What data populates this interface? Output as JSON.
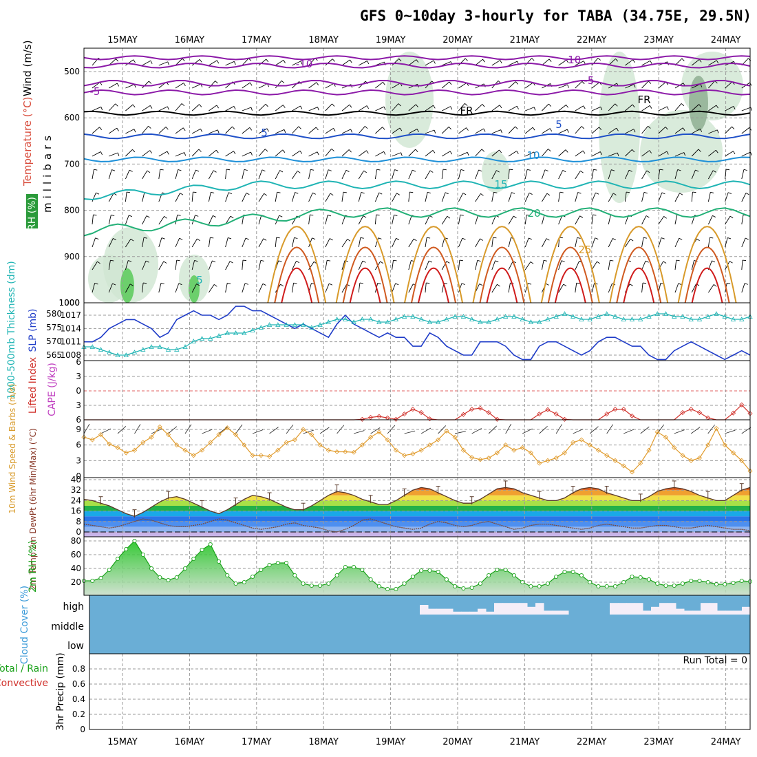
{
  "chart_data": {
    "type": "meteogram",
    "title": "GFS 0~10day 3-hourly for TABA (34.75E, 29.5N)",
    "dates": [
      "15MAY",
      "16MAY",
      "17MAY",
      "18MAY",
      "19MAY",
      "20MAY",
      "21MAY",
      "22MAY",
      "23MAY",
      "24MAY"
    ],
    "upper_air": {
      "ylabel": "millibars",
      "legend": [
        "Wind (m/s)",
        "Temperature (°C)",
        "RH (%)"
      ],
      "levels": [
        "500",
        "600",
        "700",
        "800",
        "900",
        "1000"
      ],
      "isotherm_labels": [
        "-10",
        "-5",
        "FR",
        "5",
        "10",
        "15",
        "20",
        "25"
      ],
      "isotherm_colors": {
        "-10": "#8c1aa8",
        "-5": "#8c1aa8",
        "FR": "#000000",
        "5": "#1f50c8",
        "10": "#1e90d8",
        "15": "#1fb4b4",
        "20": "#22b077",
        "25": "#d89a2a",
        "30": "#d05a20",
        "35": "#d01c1c"
      }
    },
    "slp_thickness": {
      "left_axis_label": "1000-500mb Thickness (dm)",
      "right_axis_label": "SLP (mb)",
      "thickness_ticks": [
        "580",
        "575",
        "570",
        "565"
      ],
      "slp_ticks": [
        "1017",
        "1014",
        "1011",
        "1008"
      ],
      "slp": [
        1011,
        1011,
        1012,
        1014,
        1015,
        1016,
        1016,
        1015,
        1014,
        1012,
        1013,
        1016,
        1017,
        1018,
        1017,
        1017,
        1016,
        1017,
        1019,
        1019,
        1018,
        1018,
        1017,
        1016,
        1015,
        1014,
        1015,
        1014,
        1013,
        1012,
        1015,
        1017,
        1015,
        1014,
        1013,
        1012,
        1013,
        1012,
        1012,
        1010,
        1010,
        1013,
        1012,
        1010,
        1009,
        1008,
        1008,
        1011,
        1011,
        1011,
        1010,
        1008,
        1007,
        1007,
        1010,
        1011,
        1011,
        1010,
        1009,
        1008,
        1009,
        1011,
        1012,
        1012,
        1011,
        1010,
        1010,
        1008,
        1007,
        1007,
        1009,
        1010,
        1011,
        1010,
        1009,
        1008,
        1007,
        1008,
        1009,
        1008
      ],
      "thickness": [
        568,
        568,
        567,
        566,
        565,
        565,
        566,
        567,
        568,
        568,
        567,
        567,
        568,
        570,
        571,
        571,
        572,
        573,
        573,
        573,
        574,
        575,
        576,
        576,
        576,
        576,
        576,
        575,
        576,
        577,
        578,
        578,
        577,
        578,
        578,
        577,
        577,
        578,
        579,
        579,
        578,
        577,
        577,
        578,
        579,
        579,
        578,
        577,
        577,
        578,
        579,
        579,
        578,
        577,
        577,
        578,
        579,
        580,
        579,
        578,
        578,
        579,
        580,
        579,
        578,
        578,
        578,
        579,
        580,
        580,
        579,
        579,
        578,
        578,
        579,
        580,
        579,
        578,
        578,
        579
      ]
    },
    "stability": {
      "left_axis_label": "Lifted Index",
      "right_axis_label": "CAPE (J/kg)",
      "ticks": [
        "6",
        "3",
        "0",
        "3",
        "6"
      ],
      "lifted_index": [
        6,
        6,
        6,
        6,
        6,
        6,
        6,
        6,
        6,
        6,
        6,
        6,
        6,
        6,
        6,
        6,
        6,
        6,
        6,
        6,
        6,
        6,
        6,
        6,
        6,
        6,
        6,
        6,
        6,
        6,
        6,
        6,
        6,
        5.9,
        5.5,
        5.3,
        5.6,
        5.9,
        4.8,
        3.8,
        4.5,
        5.8,
        6,
        6,
        6,
        4.9,
        3.8,
        3.6,
        4.5,
        5.9,
        6,
        6,
        6,
        6,
        4.8,
        3.9,
        4.8,
        5.9,
        6,
        6,
        6,
        6,
        4.8,
        3.8,
        3.8,
        5.2,
        6,
        6,
        6,
        6,
        6,
        4.5,
        3.8,
        4.5,
        5.6,
        6,
        6,
        4.6,
        2.9,
        4.7
      ]
    },
    "wind10m": {
      "axis_label": "10m Wind Speed & Barbs (m/s)",
      "ticks": [
        "9",
        "6",
        "3",
        "0"
      ],
      "speed": [
        7.5,
        7,
        8,
        6.2,
        5.5,
        4.5,
        5,
        6.5,
        7.5,
        9.5,
        8,
        6,
        5,
        4,
        5,
        6.5,
        8,
        9.3,
        8,
        6,
        4,
        4,
        3.8,
        5,
        6.5,
        7,
        9,
        8,
        6,
        5,
        4.7,
        4.7,
        4.6,
        6,
        7.5,
        8.5,
        7,
        5,
        4,
        4.3,
        5,
        6,
        7,
        8.7,
        7.5,
        5,
        3.6,
        3.2,
        3.5,
        4.5,
        6,
        5,
        5.5,
        4.5,
        2.5,
        3,
        3.5,
        4.5,
        6.5,
        7,
        6,
        5,
        4,
        3,
        2,
        0.8,
        2.5,
        5,
        8.5,
        7.5,
        5.5,
        4,
        3,
        3.5,
        6,
        9.2,
        6,
        4.5,
        3,
        1
      ]
    },
    "temperature": {
      "axis_label": "2m Temp 2m DewPt (6hr Min/Max) (°C)",
      "ticks": [
        "40",
        "32",
        "24",
        "16",
        "8",
        "0"
      ],
      "temp": [
        25,
        24,
        22,
        20,
        17,
        14,
        12,
        15,
        19,
        23,
        26,
        27,
        25,
        22,
        19,
        16,
        14,
        17,
        21,
        25,
        28,
        27,
        25,
        22,
        19,
        17,
        17,
        20,
        24,
        28,
        31,
        30,
        28,
        25,
        23,
        21,
        21,
        24,
        28,
        32,
        34,
        33,
        30,
        27,
        24,
        22,
        22,
        25,
        29,
        33,
        34,
        33,
        30,
        28,
        26,
        24,
        24,
        26,
        30,
        33,
        34,
        33,
        30,
        28,
        26,
        24,
        24,
        27,
        31,
        33,
        34,
        33,
        31,
        28,
        26,
        24,
        24,
        28,
        32,
        34
      ],
      "dewpoint": [
        6,
        5,
        4,
        3,
        4,
        6,
        8,
        10,
        9,
        7,
        5,
        4,
        4,
        5,
        6,
        8,
        10,
        9,
        7,
        5,
        3,
        2,
        3,
        4,
        6,
        7,
        5,
        4,
        3,
        1,
        0,
        2,
        5,
        9,
        10,
        8,
        6,
        4,
        3,
        2,
        3,
        6,
        8,
        7,
        5,
        4,
        5,
        7,
        8,
        6,
        4,
        2,
        3,
        5,
        6,
        6,
        5,
        4,
        3,
        2,
        3,
        5,
        6,
        5,
        4,
        3,
        3,
        4,
        5,
        5,
        4,
        3,
        3,
        4,
        5,
        4,
        3,
        2,
        2,
        1
      ]
    },
    "rh2m": {
      "axis_label": "2m RH (%)",
      "ticks": [
        "80",
        "60",
        "40",
        "20"
      ],
      "rh": [
        22,
        22,
        26,
        38,
        54,
        68,
        80,
        60,
        40,
        27,
        23,
        27,
        40,
        54,
        67,
        75,
        50,
        30,
        18,
        20,
        28,
        38,
        45,
        48,
        48,
        30,
        18,
        15,
        15,
        18,
        30,
        42,
        42,
        38,
        24,
        14,
        10,
        10,
        18,
        28,
        37,
        37,
        35,
        24,
        14,
        11,
        12,
        18,
        30,
        38,
        38,
        30,
        20,
        14,
        14,
        18,
        28,
        35,
        35,
        30,
        20,
        14,
        14,
        14,
        20,
        28,
        27,
        24,
        18,
        15,
        15,
        18,
        22,
        22,
        20,
        17,
        17,
        19,
        22,
        21
      ],
      "series_colors": {
        "rh": "#1aa11a",
        "fill": "#8fca8f"
      }
    },
    "cloud_cover": {
      "axis_label": "Cloud Cover (%)",
      "levels": [
        "high",
        "middle",
        "low"
      ],
      "high_cloud": [
        0,
        0,
        0,
        0,
        0,
        0,
        0,
        0,
        0,
        0,
        0,
        0,
        0,
        0,
        0,
        0,
        0,
        0,
        0,
        0,
        0,
        0,
        0,
        0,
        0,
        0,
        0,
        0,
        0,
        0,
        0,
        0,
        0,
        0,
        0,
        0,
        0,
        0,
        0,
        0,
        0.5,
        0.3,
        0.3,
        0.3,
        0.15,
        0.15,
        0.15,
        0.3,
        0.15,
        0.6,
        0.6,
        0.6,
        0.6,
        0.4,
        0.6,
        0.2,
        0.2,
        0.2,
        0,
        0,
        0,
        0,
        0,
        0.6,
        0.6,
        0.6,
        0.6,
        0.2,
        0.4,
        0.6,
        0.6,
        0.3,
        0.2,
        0.2,
        0.6,
        0.6,
        0.2,
        0.2,
        0.2,
        0.4
      ],
      "colors": {
        "background": "#6aaed6",
        "clear": "#f5eef8"
      }
    },
    "precip": {
      "axis_label": "3hr Precip (mm)",
      "legend": [
        "Total / Rain",
        "Convective"
      ],
      "ticks": [
        "0.8",
        "0.6",
        "0.4",
        "0.2",
        "0"
      ],
      "annotation": "Run Total = 0",
      "values": []
    }
  }
}
